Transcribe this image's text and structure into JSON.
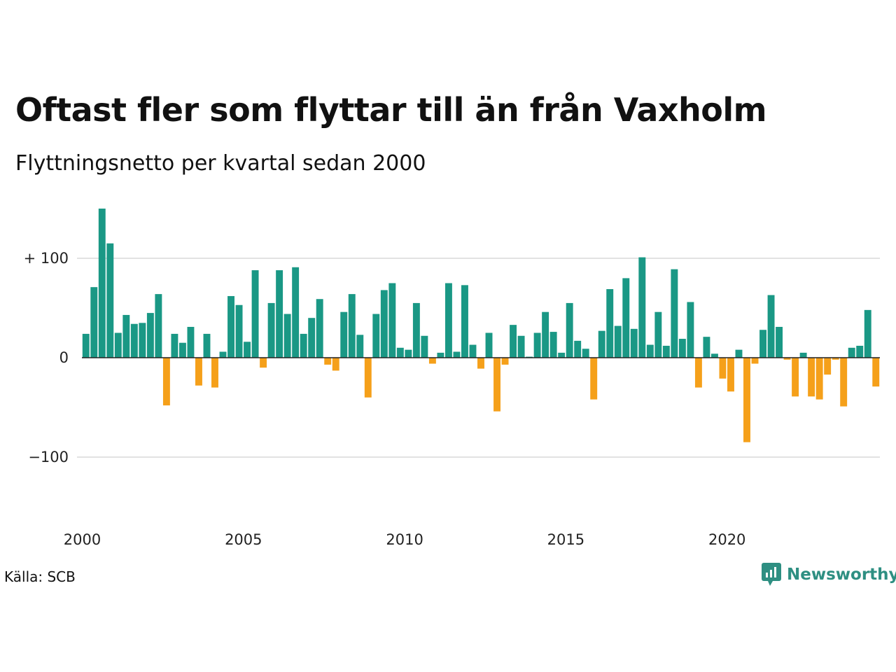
{
  "title": "Oftast fler som flyttar till än från Vaxholm",
  "subtitle": "Flyttningsnetto per kvartal sedan 2000",
  "source": "Källa: SCB",
  "brand": "Newsworthy",
  "colors": {
    "positive": "#1a9885",
    "negative": "#f5a01a",
    "grid": "#e2e2e2",
    "baseline": "#222222"
  },
  "chart_data": {
    "type": "bar",
    "title": "Oftast fler som flyttar till än från Vaxholm",
    "subtitle": "Flyttningsnetto per kvartal sedan 2000",
    "start_year": 2000,
    "periods_per_year": 4,
    "ylim": [
      -160,
      150
    ],
    "yticks": [
      {
        "value": 100,
        "label": "+ 100"
      },
      {
        "value": 0,
        "label": "0"
      },
      {
        "value": -100,
        "label": "−100"
      }
    ],
    "xticks": [
      "2000",
      "2005",
      "2010",
      "2015",
      "2020"
    ],
    "grid": true,
    "values": [
      24,
      71,
      150,
      115,
      25,
      43,
      34,
      35,
      45,
      64,
      -48,
      24,
      15,
      31,
      -28,
      24,
      -30,
      6,
      62,
      53,
      16,
      88,
      -10,
      55,
      88,
      44,
      91,
      24,
      40,
      59,
      -7,
      -13,
      46,
      64,
      23,
      -40,
      44,
      68,
      75,
      10,
      8,
      55,
      22,
      -6,
      5,
      75,
      6,
      73,
      13,
      -11,
      25,
      -54,
      -7,
      33,
      22,
      1,
      25,
      46,
      26,
      5,
      55,
      17,
      9,
      -42,
      27,
      69,
      32,
      80,
      29,
      101,
      13,
      46,
      12,
      89,
      19,
      56,
      -30,
      21,
      4,
      -21,
      -34,
      8,
      -85,
      -6,
      28,
      63,
      31,
      -2,
      -39,
      5,
      -39,
      -42,
      -17,
      -2,
      -49,
      10,
      12,
      48,
      -29
    ]
  }
}
